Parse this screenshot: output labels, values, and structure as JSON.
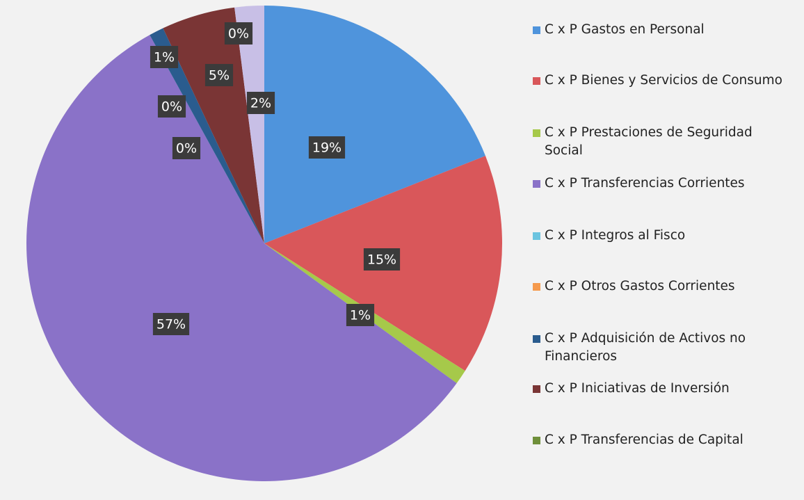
{
  "chart_data": {
    "type": "pie",
    "categories": [
      "C x P Gastos en Personal",
      "C x P Bienes y Servicios de Consumo",
      "C x P Prestaciones de Seguridad Social",
      "C x P Transferencias Corrientes",
      "C x P Integros al Fisco",
      "C x P Otros Gastos Corrientes",
      "C x P Adquisición de Activos no Financieros",
      "C x P Iniciativas de Inversión",
      "C x P Transferencias de Capital",
      null
    ],
    "values": [
      19,
      15,
      1,
      57,
      0,
      0,
      1,
      5,
      0,
      2
    ],
    "value_labels": [
      "19%",
      "15%",
      "1%",
      "57%",
      "0%",
      "0%",
      "1%",
      "5%",
      "0%",
      "2%"
    ],
    "colors": [
      "#4f94dc",
      "#d9575a",
      "#a6c94a",
      "#8a72c8",
      "#6bc4e0",
      "#f59a4d",
      "#2a5c8e",
      "#7a3535",
      "#6f8f3a",
      "#c8bfe6"
    ]
  }
}
